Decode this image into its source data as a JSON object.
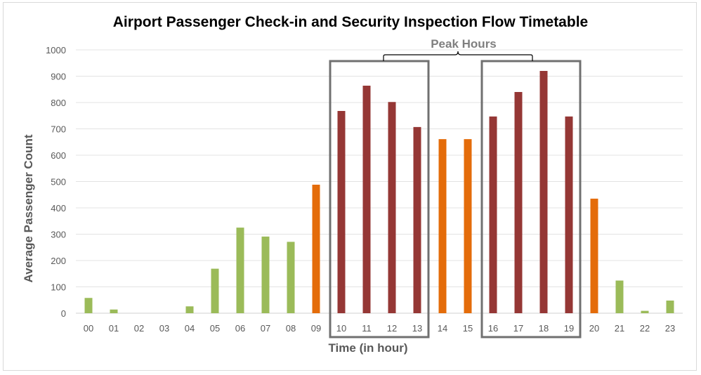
{
  "chart_data": {
    "type": "bar",
    "title": "Airport Passenger Check-in and Security Inspection Flow Timetable",
    "xlabel": "Time (in hour)",
    "ylabel": "Average Passenger Count",
    "ylim": [
      0,
      1000
    ],
    "yticks": [
      0,
      100,
      200,
      300,
      400,
      500,
      600,
      700,
      800,
      900,
      1000
    ],
    "grid": true,
    "categories": [
      "00",
      "01",
      "02",
      "03",
      "04",
      "05",
      "06",
      "07",
      "08",
      "09",
      "10",
      "11",
      "12",
      "13",
      "14",
      "15",
      "16",
      "17",
      "18",
      "19",
      "20",
      "21",
      "22",
      "23"
    ],
    "values": [
      58,
      14,
      0,
      0,
      26,
      169,
      325,
      291,
      271,
      488,
      768,
      864,
      802,
      707,
      661,
      661,
      747,
      840,
      920,
      747,
      435,
      124,
      9,
      48
    ],
    "bar_levels": [
      "low",
      "low",
      "low",
      "low",
      "low",
      "low",
      "low",
      "low",
      "low",
      "medium",
      "peak",
      "peak",
      "peak",
      "peak",
      "medium",
      "medium",
      "peak",
      "peak",
      "peak",
      "peak",
      "medium",
      "low",
      "low",
      "low"
    ],
    "colors": {
      "low": "#9bbb59",
      "medium": "#e46c0a",
      "peak": "#953735",
      "highlight_box": "#707070"
    },
    "annotation": {
      "label": "Peak Hours",
      "groups": [
        [
          "10",
          "13"
        ],
        [
          "16",
          "19"
        ]
      ]
    }
  }
}
